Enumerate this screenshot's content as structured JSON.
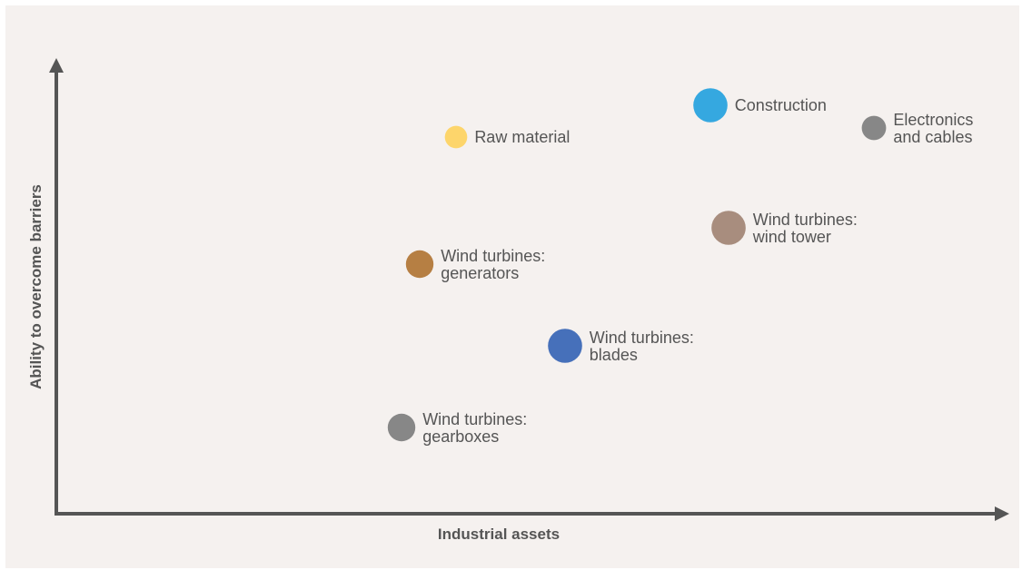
{
  "chart_data": {
    "type": "scatter",
    "title": "",
    "xlabel": "Industrial assets",
    "ylabel": "Ability to overcome barriers",
    "xlim": [
      0,
      100
    ],
    "ylim": [
      0,
      100
    ],
    "grid": false,
    "legend": "none",
    "points": [
      {
        "lines": [
          "Construction"
        ],
        "x": 72,
        "y": 90,
        "size": 3,
        "color": "#35a8e0"
      },
      {
        "lines": [
          "Electronics",
          "and cables"
        ],
        "x": 90,
        "y": 85,
        "size": 1.5,
        "color": "#878787"
      },
      {
        "lines": [
          "Raw material"
        ],
        "x": 44,
        "y": 83,
        "size": 1.2,
        "color": "#fdd56b"
      },
      {
        "lines": [
          "Wind turbines:",
          "wind tower"
        ],
        "x": 74,
        "y": 63,
        "size": 3,
        "color": "#a88d7e"
      },
      {
        "lines": [
          "Wind turbines:",
          "generators"
        ],
        "x": 40,
        "y": 55,
        "size": 2,
        "color": "#b67f43"
      },
      {
        "lines": [
          "Wind turbines:",
          "blades"
        ],
        "x": 56,
        "y": 37,
        "size": 3,
        "color": "#4670ba"
      },
      {
        "lines": [
          "Wind turbines:",
          "gearboxes"
        ],
        "x": 38,
        "y": 19,
        "size": 2,
        "color": "#878787"
      }
    ]
  }
}
